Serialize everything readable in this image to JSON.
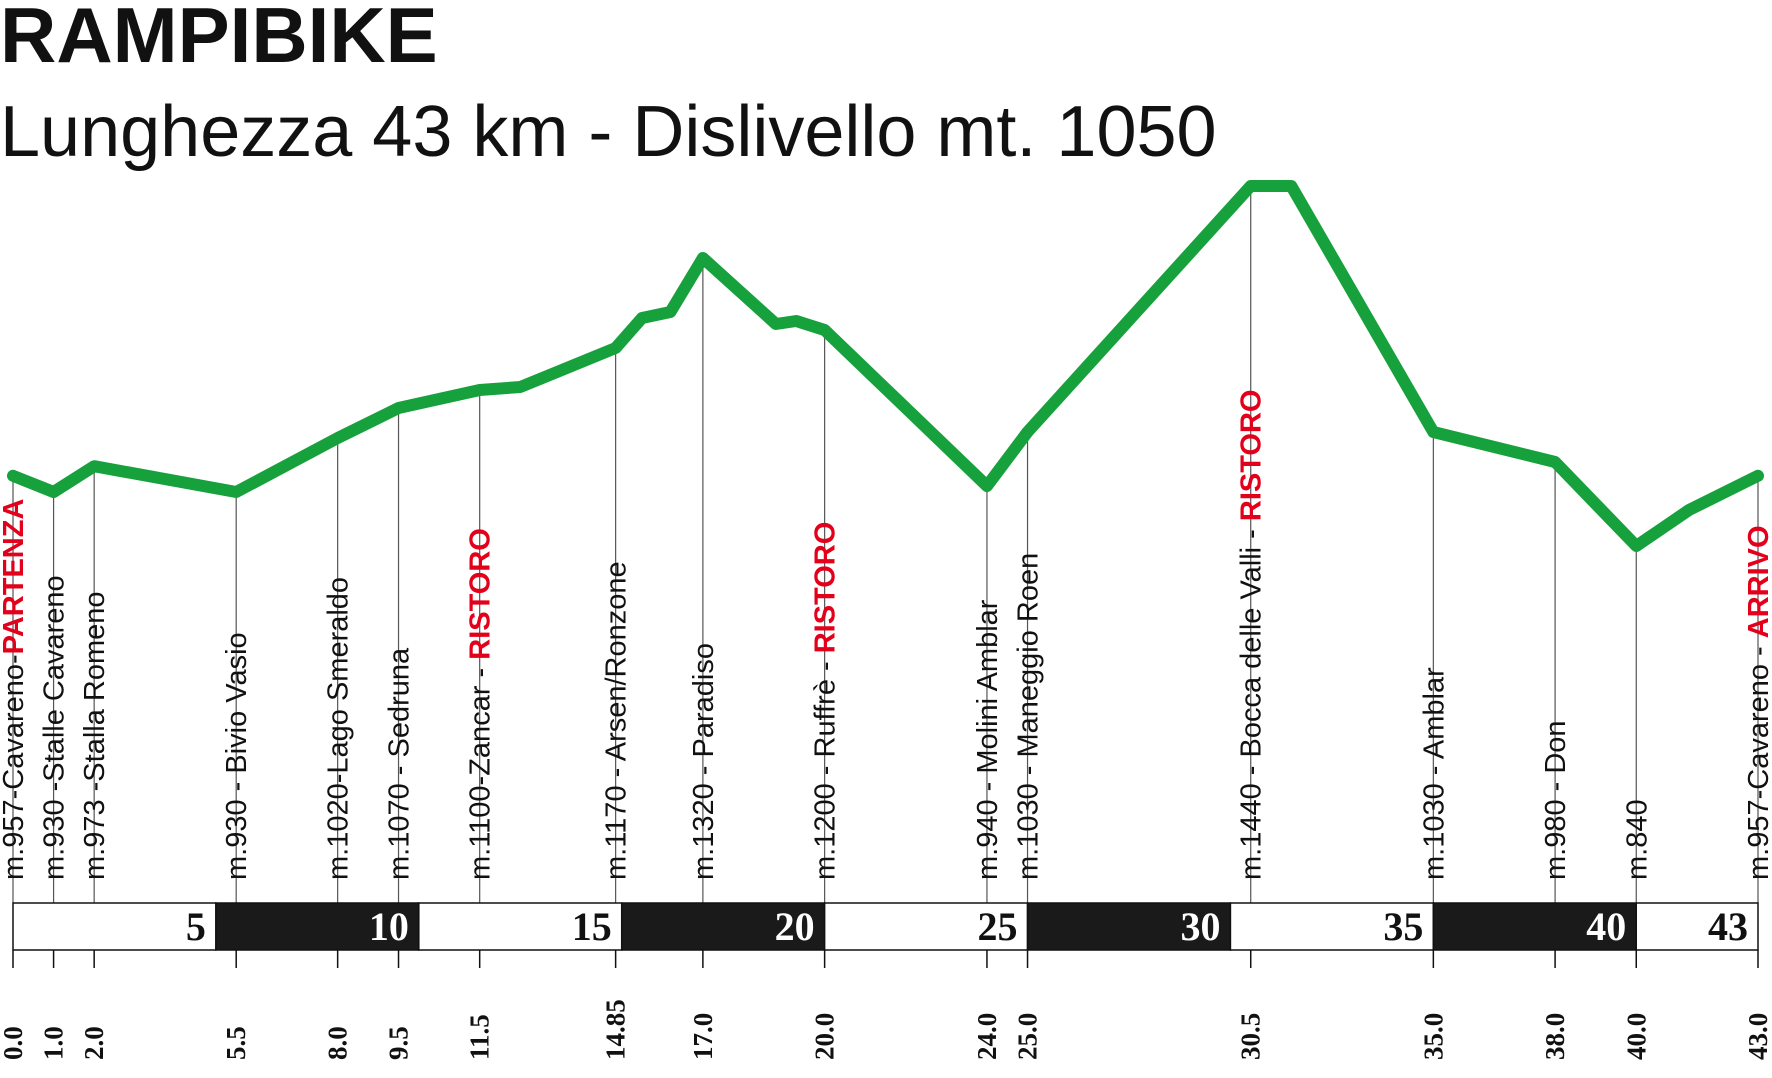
{
  "header": {
    "title": "RAMPIBIKE",
    "subtitle": "Lunghezza 43 km - Dislivello mt. 1050"
  },
  "colors": {
    "profile": "#16a13c",
    "highlight": "#e3001b",
    "bar_dark": "#1a1a1a",
    "bar_light": "#ffffff"
  },
  "chart_data": {
    "type": "line",
    "xlabel": "",
    "ylabel": "",
    "xlim": [
      0,
      43
    ],
    "ylim": [
      700,
      1500
    ],
    "grid": false,
    "legend": "none",
    "profile": {
      "x": [
        0.0,
        1.0,
        2.0,
        5.5,
        8.0,
        9.5,
        11.5,
        12.5,
        14.85,
        15.5,
        16.2,
        17.0,
        18.8,
        19.3,
        20.0,
        24.0,
        25.0,
        30.5,
        31.5,
        35.0,
        38.0,
        40.0,
        41.3,
        43.0
      ],
      "y": [
        957,
        930,
        973,
        930,
        1020,
        1070,
        1100,
        1105,
        1170,
        1220,
        1230,
        1320,
        1210,
        1215,
        1200,
        940,
        1030,
        1440,
        1440,
        1030,
        980,
        840,
        900,
        957
      ]
    },
    "waypoints": [
      {
        "km": 0.0,
        "km_label": "0.0",
        "name": "m.957-Cavareno-",
        "tag": "PARTENZA"
      },
      {
        "km": 1.0,
        "km_label": "1.0",
        "name": "m.930 -Stalle Cavareno",
        "tag": ""
      },
      {
        "km": 2.0,
        "km_label": "2.0",
        "name": "m.973 -Stalla Romeno",
        "tag": ""
      },
      {
        "km": 5.5,
        "km_label": "5.5",
        "name": "m.930 - Bivio Vasio",
        "tag": ""
      },
      {
        "km": 8.0,
        "km_label": "8.0",
        "name": "m.1020-Lago Smeraldo",
        "tag": ""
      },
      {
        "km": 9.5,
        "km_label": "9.5",
        "name": "m.1070 - Sedruna",
        "tag": ""
      },
      {
        "km": 11.5,
        "km_label": "11.5",
        "name": "m.1100-Zancar - ",
        "tag": "RISTORO"
      },
      {
        "km": 14.85,
        "km_label": "14.85",
        "name": "m.1170 - Arsen/Ronzone",
        "tag": ""
      },
      {
        "km": 17.0,
        "km_label": "17.0",
        "name": "m.1320 - Paradiso",
        "tag": ""
      },
      {
        "km": 20.0,
        "km_label": "20.0",
        "name": "m.1200 - Ruffrè - ",
        "tag": "RISTORO"
      },
      {
        "km": 24.0,
        "km_label": "24.0",
        "name": "m.940 - Molini Amblar",
        "tag": ""
      },
      {
        "km": 25.0,
        "km_label": "25.0",
        "name": "m.1030 - Maneggio Roen",
        "tag": ""
      },
      {
        "km": 30.5,
        "km_label": "30.5",
        "name": "m.1440 - Bocca delle Valli - ",
        "tag": "RISTORO"
      },
      {
        "km": 35.0,
        "km_label": "35.0",
        "name": "m.1030 - Amblar",
        "tag": ""
      },
      {
        "km": 38.0,
        "km_label": "38.0",
        "name": "m.980 - Don",
        "tag": ""
      },
      {
        "km": 40.0,
        "km_label": "40.0",
        "name": "m.840",
        "tag": ""
      },
      {
        "km": 43.0,
        "km_label": "43.0",
        "name": "m.957-Cavareno - ",
        "tag": "ARRIVO"
      }
    ],
    "scale_bar": {
      "segments": [
        {
          "from": 0,
          "to": 5,
          "label": "5",
          "dark": false
        },
        {
          "from": 5,
          "to": 10,
          "label": "10",
          "dark": true
        },
        {
          "from": 10,
          "to": 15,
          "label": "15",
          "dark": false
        },
        {
          "from": 15,
          "to": 20,
          "label": "20",
          "dark": true
        },
        {
          "from": 20,
          "to": 25,
          "label": "25",
          "dark": false
        },
        {
          "from": 25,
          "to": 30,
          "label": "30",
          "dark": true
        },
        {
          "from": 30,
          "to": 35,
          "label": "35",
          "dark": false
        },
        {
          "from": 35,
          "to": 40,
          "label": "40",
          "dark": true
        },
        {
          "from": 40,
          "to": 43,
          "label": "43",
          "dark": false
        }
      ]
    }
  }
}
